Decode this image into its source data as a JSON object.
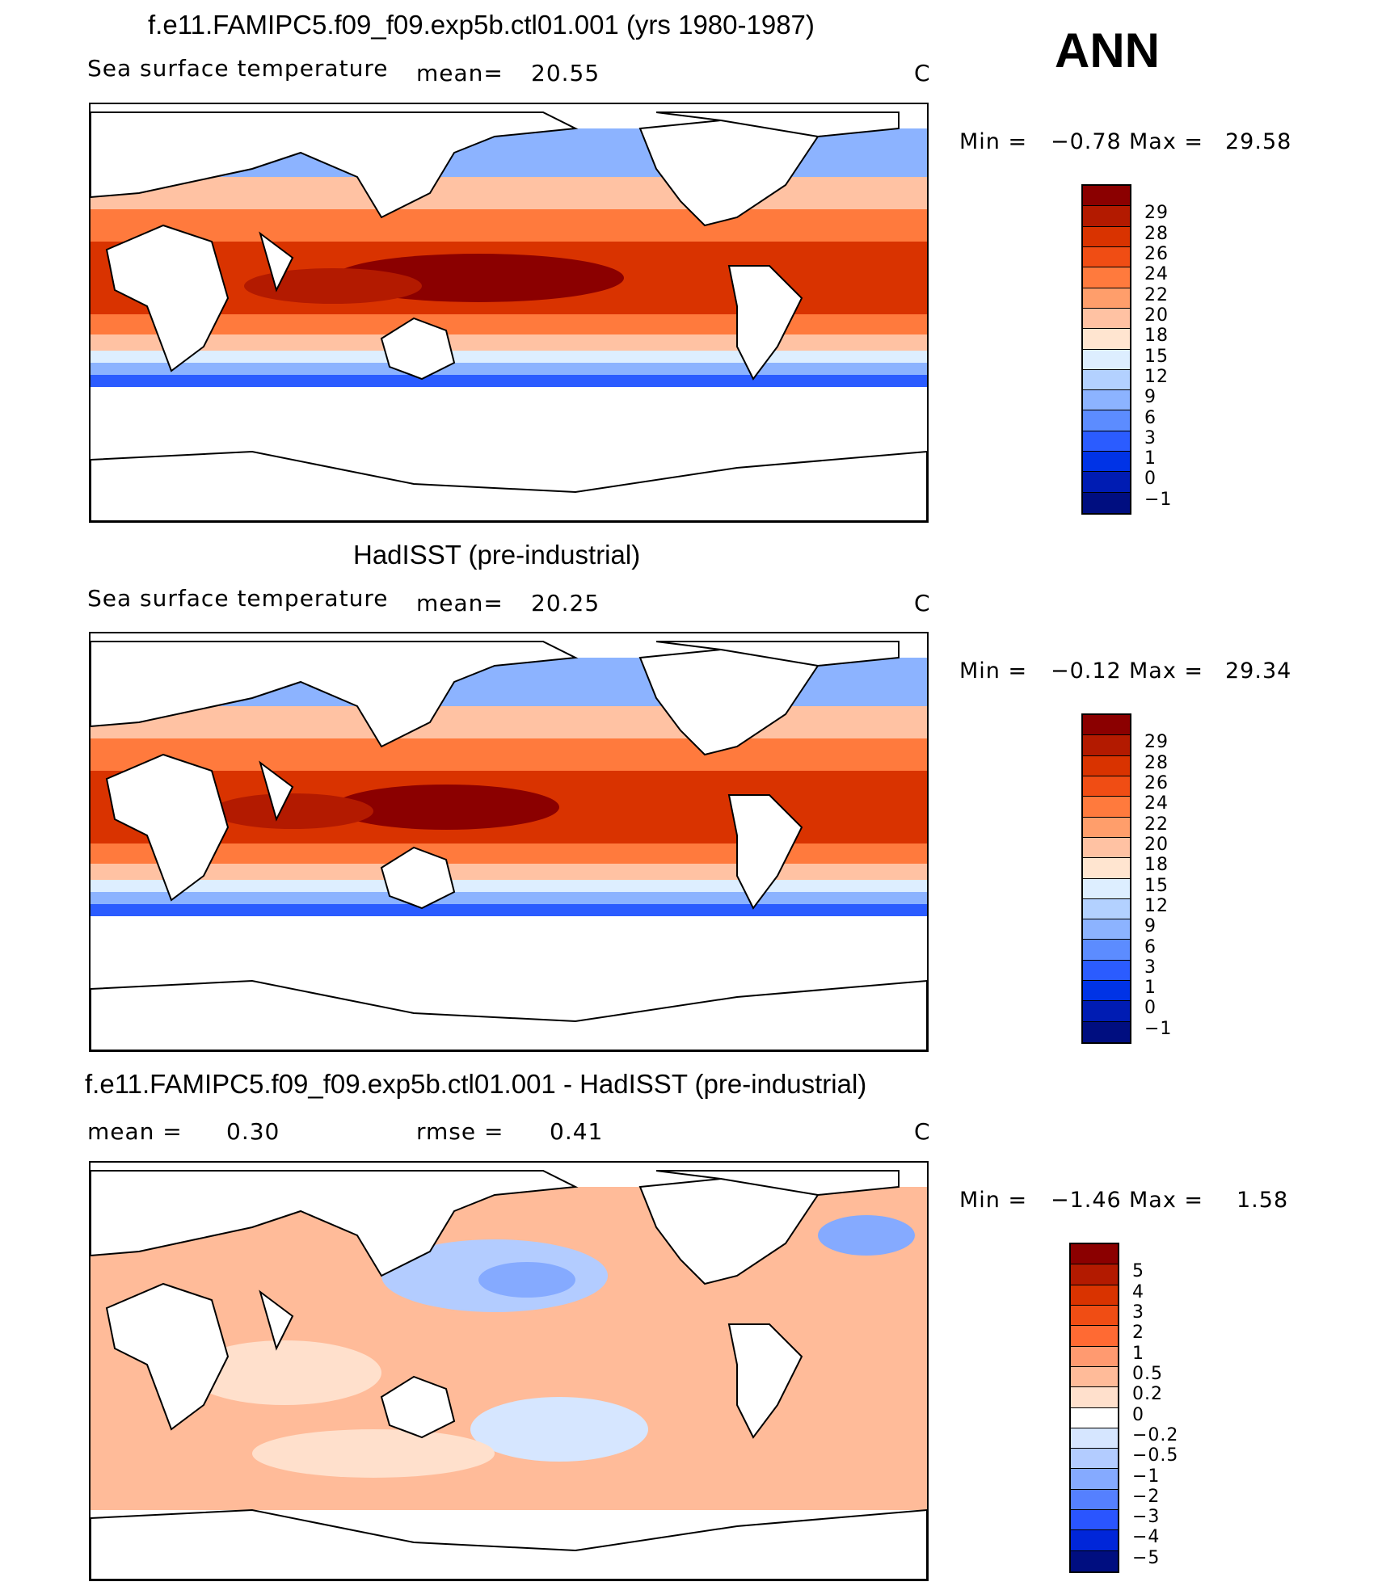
{
  "season": "ANN",
  "panels": [
    {
      "title": "f.e11.FAMIPC5.f09_f09.exp5b.ctl01.001 (yrs 1980-1987)",
      "left_label": "Sea surface temperature",
      "mid_label": "mean=",
      "mid_value": "20.55",
      "unit": "C",
      "min_label": "Min =",
      "min_value": "−0.78",
      "max_label": "Max =",
      "max_value": "29.58",
      "colorbar_ticks": [
        "29",
        "28",
        "26",
        "24",
        "22",
        "20",
        "18",
        "15",
        "12",
        "9",
        "6",
        "3",
        "1",
        "0",
        "−1"
      ],
      "colorbar_colors": [
        "#8b0000",
        "#b31a00",
        "#d93300",
        "#f04d14",
        "#ff7a3d",
        "#ff9e6b",
        "#ffc2a3",
        "#ffe5d0",
        "#ddeeff",
        "#b3d1ff",
        "#8cb3ff",
        "#5c8cff",
        "#2b5cff",
        "#0033e6",
        "#001cb3",
        "#000e80"
      ]
    },
    {
      "title": "HadISST (pre-industrial)",
      "left_label": "Sea surface temperature",
      "mid_label": "mean=",
      "mid_value": "20.25",
      "unit": "C",
      "min_label": "Min =",
      "min_value": "−0.12",
      "max_label": "Max =",
      "max_value": "29.34",
      "colorbar_ticks": [
        "29",
        "28",
        "26",
        "24",
        "22",
        "20",
        "18",
        "15",
        "12",
        "9",
        "6",
        "3",
        "1",
        "0",
        "−1"
      ],
      "colorbar_colors": [
        "#8b0000",
        "#b31a00",
        "#d93300",
        "#f04d14",
        "#ff7a3d",
        "#ff9e6b",
        "#ffc2a3",
        "#ffe5d0",
        "#ddeeff",
        "#b3d1ff",
        "#8cb3ff",
        "#5c8cff",
        "#2b5cff",
        "#0033e6",
        "#001cb3",
        "#000e80"
      ]
    },
    {
      "title": "f.e11.FAMIPC5.f09_f09.exp5b.ctl01.001 - HadISST (pre-industrial)",
      "left_label": "mean =",
      "left_value": "0.30",
      "mid_label": "rmse =",
      "mid_value": "0.41",
      "unit": "C",
      "min_label": "Min =",
      "min_value": "−1.46",
      "max_label": "Max =",
      "max_value": "1.58",
      "colorbar_ticks": [
        "5",
        "4",
        "3",
        "2",
        "1",
        "0.5",
        "0.2",
        "0",
        "−0.2",
        "−0.5",
        "−1",
        "−2",
        "−3",
        "−4",
        "−5"
      ],
      "colorbar_colors": [
        "#8b0000",
        "#b31a00",
        "#d93300",
        "#f04d14",
        "#ff6a33",
        "#ff9a70",
        "#ffbb99",
        "#ffe0cc",
        "#ffffff",
        "#d6e6ff",
        "#b3ccff",
        "#85aaff",
        "#5580ff",
        "#2a55ff",
        "#0026d9",
        "#000e80"
      ]
    }
  ]
}
